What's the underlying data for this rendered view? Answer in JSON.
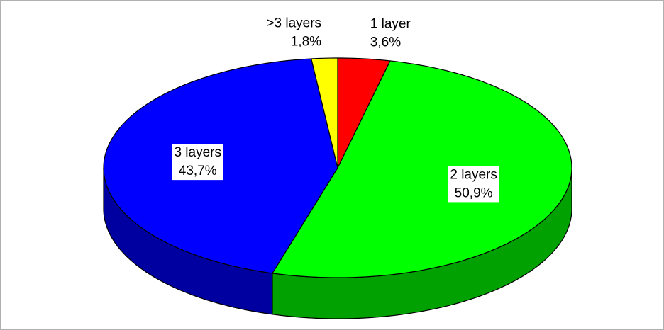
{
  "chart_data": {
    "type": "pie",
    "categories": [
      "1 layer",
      "2 layers",
      "3 layers",
      ">3 layers"
    ],
    "values": [
      3.6,
      50.9,
      43.7,
      1.8
    ],
    "value_labels": [
      "3,6%",
      "50,9%",
      "43,7%",
      "1,8%"
    ],
    "colors": [
      "#ff0000",
      "#00ff00",
      "#0000ff",
      "#ffff00"
    ],
    "three_d": true
  }
}
